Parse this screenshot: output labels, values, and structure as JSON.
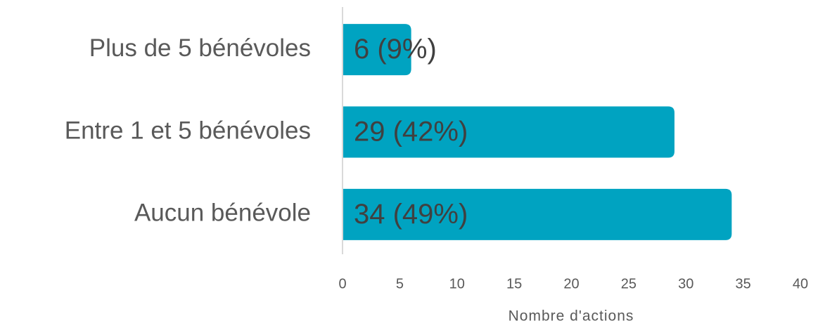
{
  "chart_data": {
    "type": "bar",
    "orientation": "horizontal",
    "categories": [
      "Plus de 5 bénévoles",
      "Entre 1 et 5 bénévoles",
      "Aucun bénévole"
    ],
    "values": [
      6,
      29,
      34
    ],
    "value_labels": [
      "6 (9%)",
      "29 (42%)",
      "34 (49%)"
    ],
    "color": "#00a3c1",
    "xlabel": "Nombre d'actions",
    "xlim": [
      0,
      40
    ],
    "xticks": [
      0,
      5,
      10,
      15,
      20,
      25,
      30,
      35,
      40
    ]
  }
}
